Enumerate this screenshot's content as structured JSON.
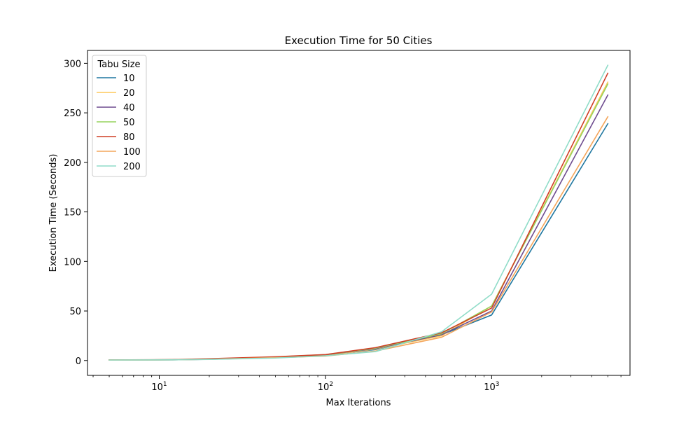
{
  "chart_data": {
    "type": "line",
    "title": "Execution Time for 50 Cities",
    "xlabel": "Max Iterations",
    "ylabel": "Execution Time (Seconds)",
    "x_scale": "log",
    "xlim": [
      3.7,
      6800
    ],
    "ylim": [
      -15,
      313
    ],
    "x_ticks": [
      {
        "value": 10,
        "base": "10",
        "exp": "1"
      },
      {
        "value": 100,
        "base": "10",
        "exp": "2"
      },
      {
        "value": 1000,
        "base": "10",
        "exp": "3"
      }
    ],
    "y_ticks": [
      0,
      50,
      100,
      150,
      200,
      250,
      300
    ],
    "grid": false,
    "legend": {
      "title": "Tabu Size",
      "position": "top-left"
    },
    "x": [
      5,
      12,
      20,
      50,
      100,
      200,
      500,
      1000,
      5000
    ],
    "series": [
      {
        "name": "10",
        "color": "#1f77a0",
        "values": [
          0.5,
          0.7,
          1.2,
          3.0,
          5.5,
          11.0,
          26.0,
          46.0,
          239.0
        ]
      },
      {
        "name": "20",
        "color": "#fdc85a",
        "values": [
          0.5,
          0.8,
          1.4,
          3.2,
          5.2,
          11.5,
          25.0,
          55.0,
          281.0
        ]
      },
      {
        "name": "40",
        "color": "#6e4c8f",
        "values": [
          0.5,
          0.8,
          1.5,
          3.5,
          5.8,
          12.0,
          26.0,
          50.0,
          268.0
        ]
      },
      {
        "name": "50",
        "color": "#96d35f",
        "values": [
          0.5,
          0.8,
          1.6,
          3.6,
          5.9,
          12.5,
          27.0,
          55.0,
          279.0
        ]
      },
      {
        "name": "80",
        "color": "#cf3e25",
        "values": [
          0.6,
          0.9,
          1.8,
          3.8,
          6.0,
          13.0,
          28.0,
          53.0,
          290.0
        ]
      },
      {
        "name": "100",
        "color": "#f4a55a",
        "values": [
          0.5,
          0.7,
          1.3,
          2.9,
          4.5,
          9.5,
          23.5,
          49.0,
          246.0
        ]
      },
      {
        "name": "200",
        "color": "#8fdcc8",
        "values": [
          0.5,
          0.7,
          1.1,
          2.5,
          4.8,
          9.0,
          29.0,
          67.0,
          298.0
        ]
      }
    ]
  }
}
